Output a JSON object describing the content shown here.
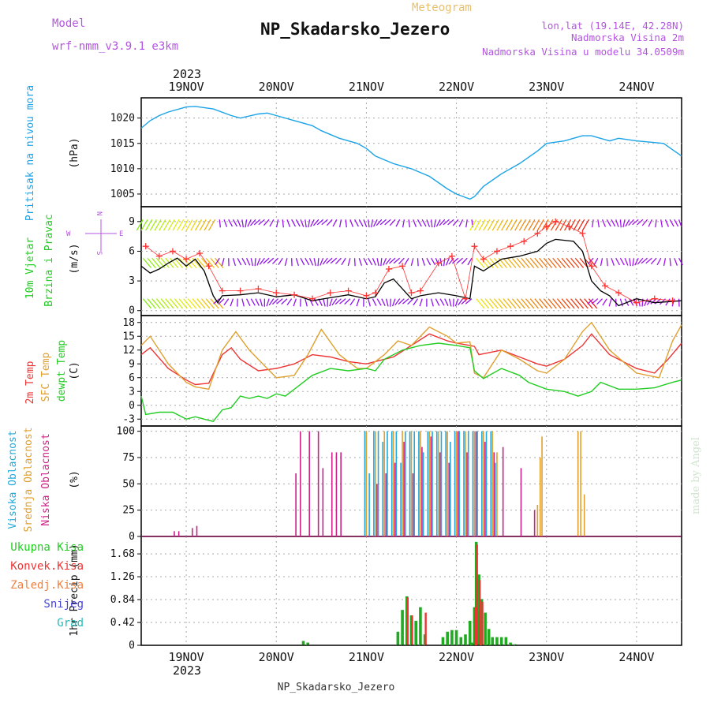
{
  "header": {
    "model_label": "Model",
    "model_name": "wrf-nmm_v3.9.1 e3km",
    "meteogram": "Meteogram",
    "station": "NP_Skadarsko_Jezero",
    "lonlat": "lon,lat (19.14E, 42.28N)",
    "elev": "Nadmorska Visina 2m",
    "elev_model": "Nadmorska Visina u modelu 34.0509m",
    "footer_station": "NP_Skadarsko_Jezero",
    "watermark": "made by Angel"
  },
  "time_axis": {
    "year": "2023",
    "labels": [
      "19NOV",
      "20NOV",
      "21NOV",
      "22NOV",
      "23NOV",
      "24NOV"
    ]
  },
  "panels": {
    "pressure": {
      "ylabel": "Pritisak na nivou mora",
      "unit": "(hPa)",
      "ticks": [
        "1005",
        "1010",
        "1015",
        "1020"
      ]
    },
    "wind": {
      "ylabel1": "10m Vjetar",
      "ylabel2": "Brzina i Pravac",
      "unit": "(m/s)",
      "ticks": [
        "0",
        "3",
        "6",
        "9"
      ],
      "compass": [
        "N",
        "W",
        "E",
        "S"
      ]
    },
    "temp": {
      "ylabel1": "2m Temp",
      "ylabel2": "SFC Temp",
      "ylabel3": "dewpt Temp",
      "unit": "(C)",
      "ticks": [
        "-3",
        "0",
        "3",
        "6",
        "9",
        "12",
        "15",
        "18"
      ]
    },
    "cloud": {
      "ylabel1": "Visoka Oblacnost",
      "ylabel2": "Srednja Oblacnost",
      "ylabel3": "Niska Oblacnost",
      "unit": "(%)",
      "ticks": [
        "0",
        "25",
        "50",
        "75",
        "100"
      ]
    },
    "precip": {
      "ylabel": "1hr Precip (mm)",
      "ticks": [
        "0",
        "0.42",
        "0.84",
        "1.26",
        "1.68"
      ],
      "legend": [
        {
          "label": "Ukupna Kisa",
          "color": "#22cc22"
        },
        {
          "label": "Konvek.Kisa",
          "color": "#ee3333"
        },
        {
          "label": "Zaledj.Kisa",
          "color": "#f08040"
        },
        {
          "label": "Snijeg",
          "color": "#4444dd"
        },
        {
          "label": "Grad",
          "color": "#22bbbb"
        }
      ]
    }
  },
  "colors": {
    "pressure": "#1aa3e8",
    "wind_speed": "#000000",
    "gust_markers": "#ff3030",
    "t2m": "#ee3333",
    "sfc": "#e0a030",
    "dewpt": "#22cc22",
    "cloud_high": "#22aadd",
    "cloud_mid": "#e0a030",
    "cloud_low": "#cc2288",
    "precip_total": "#22aa22",
    "precip_conv": "#ee3333"
  },
  "chart_data": [
    {
      "type": "line",
      "title": "Pritisak na nivou mora",
      "ylabel": "(hPa)",
      "ylim": [
        1002.5,
        1024
      ],
      "x_day_range": [
        18.5,
        24.5
      ],
      "series": [
        {
          "name": "Pritisak na nivou mora",
          "x": [
            18.5,
            18.6,
            18.7,
            18.8,
            19.0,
            19.1,
            19.3,
            19.5,
            19.6,
            19.8,
            19.9,
            20.0,
            20.2,
            20.4,
            20.5,
            20.7,
            20.9,
            21.0,
            21.1,
            21.3,
            21.5,
            21.7,
            21.9,
            22.0,
            22.15,
            22.2,
            22.3,
            22.5,
            22.7,
            22.9,
            23.0,
            23.2,
            23.4,
            23.5,
            23.7,
            23.8,
            24.0,
            24.3,
            24.5
          ],
          "values": [
            1018,
            1019.5,
            1020.5,
            1021.2,
            1022.2,
            1022.3,
            1021.8,
            1020.5,
            1020.0,
            1020.8,
            1021.0,
            1020.5,
            1019.5,
            1018.5,
            1017.5,
            1016.0,
            1015.0,
            1014.0,
            1012.5,
            1011.0,
            1010.0,
            1008.5,
            1006.0,
            1005.0,
            1004.0,
            1004.5,
            1006.5,
            1009.0,
            1011.0,
            1013.5,
            1015.0,
            1015.5,
            1016.5,
            1016.5,
            1015.5,
            1016.0,
            1015.5,
            1015.0,
            1012.5
          ]
        }
      ]
    },
    {
      "type": "line",
      "title": "10m Vjetar Brzina i Pravac",
      "ylabel": "(m/s)",
      "ylim": [
        -0.5,
        10.5
      ],
      "x_day_range": [
        18.5,
        24.5
      ],
      "series": [
        {
          "name": "speed",
          "x": [
            18.5,
            18.6,
            18.7,
            18.8,
            18.9,
            19.0,
            19.1,
            19.2,
            19.3,
            19.35,
            19.4,
            19.6,
            19.8,
            20.0,
            20.2,
            20.4,
            20.6,
            20.8,
            21.0,
            21.1,
            21.2,
            21.3,
            21.5,
            21.6,
            21.8,
            22.0,
            22.1,
            22.15,
            22.2,
            22.3,
            22.5,
            22.7,
            22.9,
            23.0,
            23.1,
            23.3,
            23.4,
            23.5,
            23.6,
            23.7,
            23.8,
            24.0,
            24.2,
            24.5
          ],
          "values": [
            4.5,
            3.8,
            4.2,
            4.8,
            5.3,
            4.5,
            5.2,
            4.0,
            1.5,
            0.8,
            1.5,
            1.6,
            1.8,
            1.4,
            1.6,
            1.0,
            1.3,
            1.6,
            1.2,
            1.4,
            2.8,
            3.2,
            1.2,
            1.5,
            1.8,
            1.5,
            1.3,
            1.2,
            4.5,
            4.0,
            5.2,
            5.5,
            6.0,
            6.8,
            7.2,
            7.0,
            6.0,
            3.0,
            2.0,
            1.5,
            0.5,
            1.2,
            0.8,
            1.0
          ]
        },
        {
          "name": "gust",
          "x": [
            18.55,
            18.7,
            18.85,
            19.0,
            19.15,
            19.25,
            19.4,
            19.6,
            19.8,
            20.0,
            20.2,
            20.4,
            20.6,
            20.8,
            21.0,
            21.1,
            21.25,
            21.4,
            21.5,
            21.6,
            21.8,
            21.95,
            22.1,
            22.2,
            22.3,
            22.45,
            22.6,
            22.75,
            22.9,
            23.0,
            23.1,
            23.25,
            23.4,
            23.5,
            23.65,
            23.8,
            24.0,
            24.2,
            24.4
          ],
          "values": [
            6.5,
            5.5,
            6.0,
            5.2,
            5.8,
            4.5,
            2.0,
            2.0,
            2.2,
            1.8,
            1.6,
            1.2,
            1.8,
            2.0,
            1.5,
            1.8,
            4.2,
            4.5,
            1.8,
            2.0,
            4.8,
            5.5,
            1.2,
            6.5,
            5.2,
            6.0,
            6.5,
            7.0,
            7.8,
            8.5,
            9.0,
            8.5,
            7.8,
            4.5,
            2.5,
            1.8,
            0.8,
            1.2,
            1.0
          ]
        }
      ]
    },
    {
      "type": "line",
      "title": "2m Temp / SFC Temp / dewpt Temp",
      "ylabel": "(C)",
      "ylim": [
        -4.5,
        19.5
      ],
      "x_day_range": [
        18.5,
        24.5
      ],
      "series": [
        {
          "name": "2m Temp",
          "x": [
            18.5,
            18.6,
            18.8,
            19.0,
            19.1,
            19.25,
            19.4,
            19.5,
            19.6,
            19.8,
            20.0,
            20.2,
            20.4,
            20.6,
            20.8,
            21.0,
            21.1,
            21.3,
            21.5,
            21.7,
            21.9,
            22.0,
            22.15,
            22.2,
            22.25,
            22.5,
            22.7,
            22.9,
            23.0,
            23.2,
            23.4,
            23.5,
            23.7,
            24.0,
            24.2,
            24.35,
            24.5
          ],
          "values": [
            11,
            12.5,
            8,
            5.5,
            4.5,
            4.8,
            11,
            12.5,
            10,
            7.5,
            8,
            9,
            11,
            10.5,
            9.5,
            9,
            9.5,
            10.5,
            13,
            15.5,
            14,
            13.5,
            13,
            12.8,
            11,
            12,
            10.5,
            9,
            8.5,
            10,
            13,
            15.5,
            11,
            8,
            7,
            10,
            13.5
          ]
        },
        {
          "name": "SFC Temp",
          "x": [
            18.5,
            18.6,
            18.8,
            19.0,
            19.1,
            19.25,
            19.4,
            19.55,
            19.7,
            19.9,
            20.0,
            20.2,
            20.35,
            20.5,
            20.7,
            20.9,
            21.0,
            21.2,
            21.35,
            21.5,
            21.7,
            21.9,
            22.0,
            22.15,
            22.2,
            22.3,
            22.5,
            22.7,
            22.9,
            23.0,
            23.2,
            23.4,
            23.5,
            23.7,
            24.0,
            24.25,
            24.4,
            24.5
          ],
          "values": [
            13,
            15,
            9,
            5,
            4,
            3.5,
            12,
            16,
            12,
            8,
            6,
            6.5,
            11,
            16.5,
            11,
            8,
            8,
            11,
            14,
            13,
            17,
            15,
            13.5,
            13.8,
            7,
            6,
            12,
            10,
            7.5,
            7,
            10,
            16,
            18,
            12,
            7,
            6,
            14,
            17.5
          ]
        },
        {
          "name": "dewpt Temp",
          "x": [
            18.5,
            18.55,
            18.7,
            18.85,
            19.0,
            19.1,
            19.2,
            19.3,
            19.4,
            19.5,
            19.6,
            19.7,
            19.8,
            19.9,
            20.0,
            20.1,
            20.3,
            20.4,
            20.6,
            20.8,
            21.0,
            21.1,
            21.2,
            21.3,
            21.4,
            21.6,
            21.8,
            22.0,
            22.15,
            22.2,
            22.3,
            22.5,
            22.7,
            22.8,
            23.0,
            23.2,
            23.35,
            23.5,
            23.6,
            23.8,
            24.0,
            24.2,
            24.4,
            24.5
          ],
          "values": [
            2,
            -2,
            -1.5,
            -1.5,
            -3,
            -2.5,
            -3,
            -3.5,
            -1,
            -0.5,
            2,
            1.5,
            2,
            1.5,
            2.5,
            2,
            5,
            6.5,
            8,
            7.5,
            8,
            7.5,
            10,
            11,
            12,
            13,
            13.5,
            13,
            12.5,
            7.5,
            5.8,
            8,
            6.5,
            5,
            3.5,
            3,
            2,
            3,
            5,
            3.5,
            3.5,
            3.8,
            5,
            5.5
          ]
        }
      ]
    },
    {
      "type": "bar",
      "title": "Visoka / Srednja / Niska Oblacnost",
      "ylabel": "(%)",
      "ylim": [
        0,
        105
      ],
      "x_day_range": [
        18.5,
        24.5
      ],
      "series": [
        {
          "name": "Visoka Oblacnost",
          "x": [
            21.0,
            21.05,
            21.1,
            21.15,
            21.2,
            21.25,
            21.3,
            21.35,
            21.4,
            21.45,
            21.5,
            21.55,
            21.6,
            21.65,
            21.7,
            21.75,
            21.8,
            21.85,
            21.9,
            21.95,
            22.0,
            22.05,
            22.1,
            22.15,
            22.2,
            22.25,
            22.3,
            22.35,
            22.4,
            22.45
          ],
          "values": [
            100,
            60,
            100,
            100,
            90,
            100,
            100,
            100,
            70,
            100,
            100,
            100,
            100,
            80,
            100,
            100,
            100,
            100,
            100,
            90,
            100,
            100,
            100,
            100,
            100,
            100,
            100,
            100,
            100,
            70
          ]
        },
        {
          "name": "Srednja Oblacnost",
          "x": [
            21.0,
            21.1,
            21.2,
            21.3,
            21.4,
            21.5,
            21.6,
            21.7,
            21.8,
            21.9,
            22.0,
            22.1,
            22.2,
            22.3,
            22.4,
            22.45,
            22.9,
            22.93,
            22.95,
            23.35,
            23.38,
            23.42
          ],
          "values": [
            100,
            100,
            100,
            100,
            100,
            100,
            100,
            100,
            100,
            100,
            100,
            100,
            100,
            100,
            100,
            80,
            30,
            75,
            95,
            100,
            100,
            40
          ]
        },
        {
          "name": "Niska Oblacnost",
          "x": [
            18.85,
            18.9,
            19.05,
            19.1,
            20.2,
            20.25,
            20.35,
            20.45,
            20.5,
            20.6,
            20.65,
            20.7,
            21.1,
            21.2,
            21.3,
            21.4,
            21.5,
            21.6,
            21.7,
            21.8,
            21.9,
            22.0,
            22.1,
            22.2,
            22.3,
            22.4,
            22.5,
            22.7,
            22.85
          ],
          "values": [
            5,
            5,
            8,
            10,
            60,
            100,
            100,
            100,
            65,
            80,
            80,
            80,
            50,
            60,
            70,
            90,
            60,
            85,
            95,
            80,
            70,
            100,
            80,
            100,
            90,
            80,
            85,
            65,
            25
          ]
        }
      ]
    },
    {
      "type": "bar",
      "title": "1hr Precip",
      "ylabel": "1hr Precip (mm)",
      "ylim": [
        0,
        2.0
      ],
      "x_day_range": [
        18.5,
        24.5
      ],
      "series": [
        {
          "name": "Ukupna Kisa",
          "x": [
            20.3,
            20.35,
            21.35,
            21.4,
            21.45,
            21.5,
            21.55,
            21.6,
            21.65,
            21.85,
            21.9,
            21.95,
            22.0,
            22.05,
            22.1,
            22.15,
            22.18,
            22.2,
            22.22,
            22.25,
            22.28,
            22.32,
            22.36,
            22.4,
            22.45,
            22.5,
            22.55,
            22.6,
            22.65
          ],
          "values": [
            0.08,
            0.05,
            0.25,
            0.65,
            0.9,
            0.55,
            0.45,
            0.7,
            0.2,
            0.15,
            0.25,
            0.28,
            0.28,
            0.15,
            0.2,
            0.45,
            0.05,
            0.7,
            1.9,
            1.3,
            0.85,
            0.6,
            0.3,
            0.15,
            0.15,
            0.15,
            0.15,
            0.05,
            0.02
          ]
        },
        {
          "name": "Konvek.Kisa",
          "x": [
            21.45,
            21.5,
            21.65,
            22.2,
            22.22,
            22.25,
            22.28
          ],
          "values": [
            0.88,
            0.55,
            0.6,
            0.7,
            1.85,
            1.2,
            0.8
          ]
        }
      ]
    }
  ]
}
